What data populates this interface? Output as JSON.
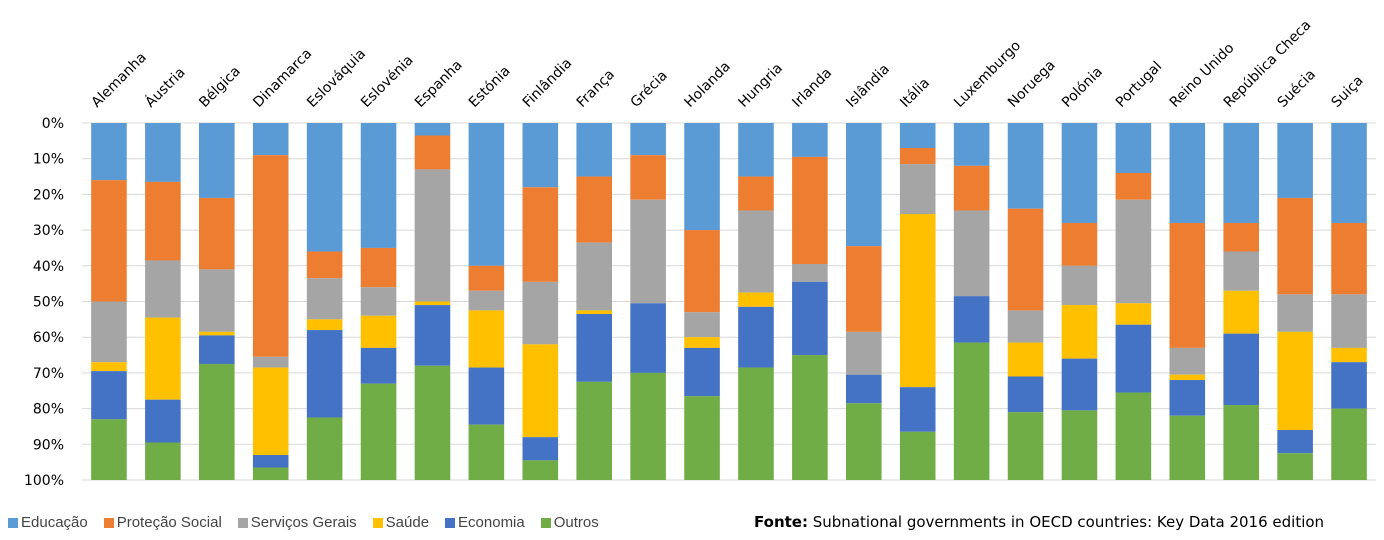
{
  "chart_data": {
    "type": "bar",
    "stacked": true,
    "orientation": "vertical",
    "ylim": [
      0,
      100
    ],
    "y_inverted": true,
    "y_ticks": [
      "0%",
      "10%",
      "20%",
      "30%",
      "40%",
      "50%",
      "60%",
      "70%",
      "80%",
      "90%",
      "100%"
    ],
    "grid": true,
    "legend_position": "bottom-left",
    "categories": [
      "Alemanha",
      "Áustria",
      "Bélgica",
      "Dinamarca",
      "Eslováquia",
      "Eslovénia",
      "Espanha",
      "Estónia",
      "Finlândia",
      "França",
      "Grécia",
      "Holanda",
      "Hungria",
      "Irlanda",
      "Islândia",
      "Itália",
      "Luxemburgo",
      "Noruega",
      "Polónia",
      "Portugal",
      "Reino Unido",
      "República Checa",
      "Suécia",
      "Suiça"
    ],
    "series": [
      {
        "name": "Educação",
        "color": "#5B9BD5",
        "values": [
          16,
          16.5,
          21,
          9,
          36,
          35,
          3.5,
          40,
          18,
          15,
          9,
          30,
          15,
          9.5,
          34.5,
          7,
          12,
          24,
          28,
          14,
          28,
          28,
          21,
          28
        ]
      },
      {
        "name": "Proteção Social",
        "color": "#ED7D31",
        "values": [
          34,
          22,
          20,
          56.5,
          7.5,
          11,
          9.5,
          7,
          26.5,
          18.5,
          12.5,
          23,
          9.5,
          30,
          24,
          4.5,
          12.5,
          28.5,
          12,
          7.5,
          35,
          8,
          27,
          20
        ]
      },
      {
        "name": "Serviços Gerais",
        "color": "#A5A5A5",
        "values": [
          17,
          16,
          17.5,
          3,
          11.5,
          8,
          37,
          5.5,
          17.5,
          19,
          29,
          7,
          23,
          5,
          12,
          14,
          24,
          9,
          11,
          29,
          7.5,
          11,
          10.5,
          15
        ]
      },
      {
        "name": "Saúde",
        "color": "#FFC000",
        "values": [
          2.5,
          23,
          1,
          24.5,
          3,
          9,
          1,
          16,
          26,
          1,
          0,
          3,
          4,
          0,
          0,
          48.5,
          0,
          9.5,
          15,
          6,
          1.5,
          12,
          27.5,
          4
        ]
      },
      {
        "name": "Economia",
        "color": "#4472C4",
        "values": [
          13.5,
          12,
          8,
          3.5,
          24.5,
          10,
          17,
          16,
          6.5,
          19,
          19.5,
          13.5,
          17,
          20.5,
          8,
          12.5,
          13,
          10,
          14.5,
          19,
          10,
          20,
          6.5,
          13
        ]
      },
      {
        "name": "Outros",
        "color": "#70AD47",
        "values": [
          17,
          10.5,
          32.5,
          3.5,
          17.5,
          27,
          32,
          15.5,
          5.5,
          27.5,
          30,
          23.5,
          31.5,
          35,
          21.5,
          13.5,
          38.5,
          19,
          19.5,
          24.5,
          18,
          21,
          7.5,
          20
        ]
      }
    ]
  },
  "source": {
    "label": "Fonte:",
    "text": " Subnational governments in OECD countries: Key Data 2016 edition"
  }
}
